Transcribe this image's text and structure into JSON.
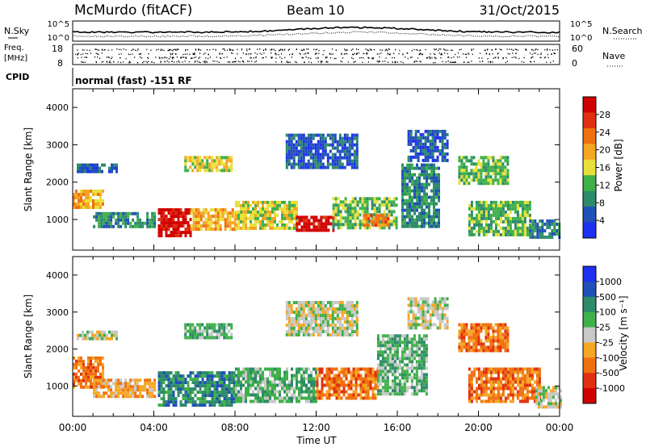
{
  "header": {
    "station": "McMurdo (fitACF)",
    "beam": "Beam 10",
    "date": "31/Oct/2015",
    "nsky_label": "N.Sky",
    "nsearch_label": "N.Search",
    "freq_label_1": "Freq.",
    "freq_label_2": "[MHz]",
    "nave_label": "Nave",
    "cpid_label": "CPID",
    "cpid_value": "normal (fast) -151 RF",
    "noise_left_ticks": [
      "10^5",
      "10^0"
    ],
    "noise_right_ticks": [
      "10^5",
      "10^0"
    ],
    "freq_ticks": [
      "18",
      "8"
    ],
    "nave_ticks": [
      "60",
      "0"
    ]
  },
  "colors": {
    "power": [
      "#1e30f0",
      "#2050b8",
      "#2d8a6a",
      "#3fb04a",
      "#e8e03a",
      "#f5a623",
      "#f07010",
      "#e03010",
      "#d00000"
    ],
    "velocity": [
      "#1e30f0",
      "#2050b8",
      "#2d8a6a",
      "#3fb04a",
      "#c8c8c8",
      "#f5a623",
      "#f07010",
      "#e03010",
      "#d00000"
    ]
  },
  "chart_data": [
    {
      "type": "heatmap",
      "quantity": "power",
      "title": "",
      "xlabel": "",
      "ylabel": "Slant Range [km]",
      "xlim": [
        "00:00",
        "24:00"
      ],
      "ylim": [
        180,
        4500
      ],
      "yticks": [
        "1000",
        "2000",
        "3000",
        "4000"
      ],
      "colorbar_label": "Power [dB]",
      "colorbar_ticks": [
        "4",
        "8",
        "12",
        "16",
        "20",
        "24",
        "28"
      ],
      "colorbar_range": [
        0,
        32
      ],
      "regions": [
        {
          "t0": 0.0,
          "t1": 1.5,
          "r0": 1350,
          "r1": 1800,
          "level": 5
        },
        {
          "t0": 0.2,
          "t1": 2.2,
          "r0": 2300,
          "r1": 2500,
          "level": 1
        },
        {
          "t0": 1.0,
          "t1": 4.0,
          "r0": 850,
          "r1": 1200,
          "level": 2
        },
        {
          "t0": 4.2,
          "t1": 5.8,
          "r0": 600,
          "r1": 1300,
          "level": 8
        },
        {
          "t0": 5.8,
          "t1": 8.0,
          "r0": 700,
          "r1": 1300,
          "level": 5
        },
        {
          "t0": 5.5,
          "t1": 7.8,
          "r0": 2300,
          "r1": 2700,
          "level": 4
        },
        {
          "t0": 8.0,
          "t1": 11.0,
          "r0": 800,
          "r1": 1500,
          "level": 4
        },
        {
          "t0": 11.0,
          "t1": 12.8,
          "r0": 700,
          "r1": 1100,
          "level": 8
        },
        {
          "t0": 12.8,
          "t1": 16.0,
          "r0": 800,
          "r1": 1600,
          "level": 3
        },
        {
          "t0": 14.3,
          "t1": 15.5,
          "r0": 850,
          "r1": 1150,
          "level": 6
        },
        {
          "t0": 16.2,
          "t1": 18.0,
          "r0": 800,
          "r1": 2500,
          "level": 2
        },
        {
          "t0": 16.5,
          "t1": 18.5,
          "r0": 2600,
          "r1": 3400,
          "level": 1
        },
        {
          "t0": 19.0,
          "t1": 21.5,
          "r0": 2000,
          "r1": 2700,
          "level": 3
        },
        {
          "t0": 19.5,
          "t1": 22.5,
          "r0": 600,
          "r1": 1500,
          "level": 3
        },
        {
          "t0": 22.5,
          "t1": 24.0,
          "r0": 500,
          "r1": 1000,
          "level": 2
        },
        {
          "t0": 10.5,
          "t1": 14.0,
          "r0": 2400,
          "r1": 3300,
          "level": 1
        }
      ]
    },
    {
      "type": "heatmap",
      "quantity": "velocity",
      "title": "",
      "xlabel": "Time UT",
      "ylabel": "Slant Range [km]",
      "xlim": [
        "00:00",
        "24:00"
      ],
      "ylim": [
        180,
        4500
      ],
      "xticks": [
        "00:00",
        "04:00",
        "08:00",
        "12:00",
        "16:00",
        "20:00",
        "00:00"
      ],
      "yticks": [
        "1000",
        "2000",
        "3000",
        "4000"
      ],
      "colorbar_label": "Velocity [m s⁻¹]",
      "colorbar_ticks": [
        "1000",
        "500",
        "100",
        "25",
        "-25",
        "-100",
        "-500",
        "-1000"
      ],
      "regions": [
        {
          "t0": 0.0,
          "t1": 1.5,
          "r0": 1000,
          "r1": 1800,
          "level": 6
        },
        {
          "t0": 0.2,
          "t1": 2.2,
          "r0": 2300,
          "r1": 2500,
          "level": 4
        },
        {
          "t0": 1.0,
          "t1": 4.0,
          "r0": 750,
          "r1": 1200,
          "level": 5
        },
        {
          "t0": 4.2,
          "t1": 8.0,
          "r0": 500,
          "r1": 1400,
          "level": 2
        },
        {
          "t0": 5.5,
          "t1": 7.8,
          "r0": 2300,
          "r1": 2700,
          "level": 3
        },
        {
          "t0": 8.0,
          "t1": 12.0,
          "r0": 600,
          "r1": 1500,
          "level": 3
        },
        {
          "t0": 12.0,
          "t1": 15.0,
          "r0": 700,
          "r1": 1500,
          "level": 6
        },
        {
          "t0": 15.0,
          "t1": 17.5,
          "r0": 800,
          "r1": 2400,
          "level": 3
        },
        {
          "t0": 16.5,
          "t1": 18.5,
          "r0": 2600,
          "r1": 3400,
          "level": 4
        },
        {
          "t0": 19.0,
          "t1": 21.5,
          "r0": 2000,
          "r1": 2700,
          "level": 6
        },
        {
          "t0": 19.5,
          "t1": 23.0,
          "r0": 600,
          "r1": 1500,
          "level": 6
        },
        {
          "t0": 22.8,
          "t1": 24.0,
          "r0": 450,
          "r1": 1000,
          "level": 4
        },
        {
          "t0": 10.5,
          "t1": 14.0,
          "r0": 2400,
          "r1": 3300,
          "level": 4
        }
      ]
    }
  ]
}
